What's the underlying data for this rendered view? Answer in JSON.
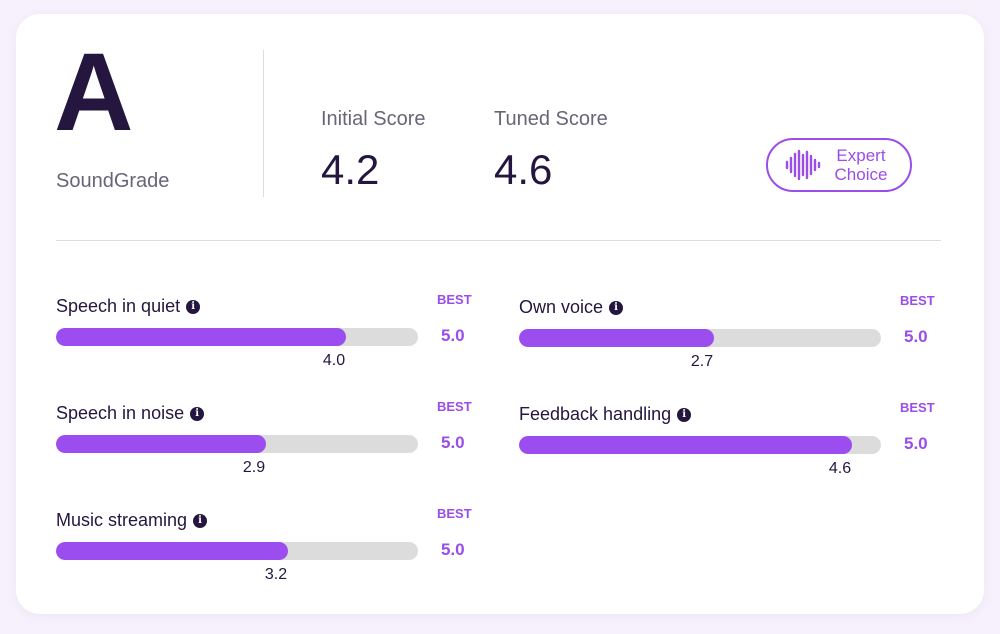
{
  "grade": {
    "letter": "A",
    "brand": "SoundGrade"
  },
  "scores": {
    "initial": {
      "label": "Initial Score",
      "value": "4.2"
    },
    "tuned": {
      "label": "Tuned Score",
      "value": "4.6"
    }
  },
  "badge": {
    "line1": "Expert",
    "line2": "Choice",
    "icon": "sound-wave-icon"
  },
  "colors": {
    "accent": "#9b4df0",
    "track": "#dcdcdc",
    "text": "#25163f"
  },
  "metrics": [
    {
      "name": "Speech in quiet",
      "best_label": "BEST",
      "max": "5.0",
      "score": "4.0",
      "fraction": 0.8
    },
    {
      "name": "Speech in noise",
      "best_label": "BEST",
      "max": "5.0",
      "score": "2.9",
      "fraction": 0.58
    },
    {
      "name": "Music streaming",
      "best_label": "BEST",
      "max": "5.0",
      "score": "3.2",
      "fraction": 0.64
    },
    {
      "name": "Own voice",
      "best_label": "BEST",
      "max": "5.0",
      "score": "2.7",
      "fraction": 0.54
    },
    {
      "name": "Feedback handling",
      "best_label": "BEST",
      "max": "5.0",
      "score": "4.6",
      "fraction": 0.92
    }
  ]
}
